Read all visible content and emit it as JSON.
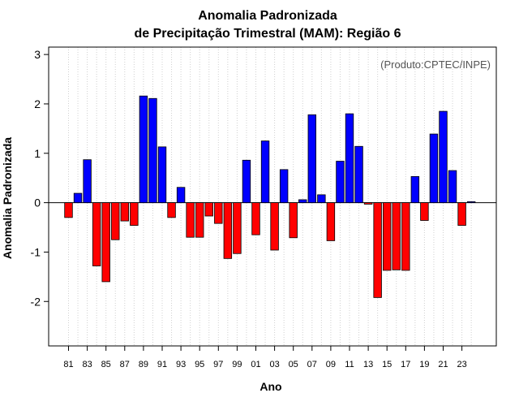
{
  "chart_data": {
    "type": "bar",
    "title_line1": "Anomalia Padronizada",
    "title_line2": "de Precipitação Trimestral (MAM): Região 6",
    "xlabel": "Ano",
    "ylabel": "Anomalia Padronizada",
    "credit": "(Produto:CPTEC/INPE)",
    "ylim": [
      -2.9,
      3.15
    ],
    "yticks": [
      -2,
      -1,
      0,
      1,
      2,
      3
    ],
    "ytick_labels": [
      "-2",
      "-1",
      "0",
      "1",
      "2",
      "3"
    ],
    "x_tick_labels": [
      "81",
      "83",
      "85",
      "87",
      "89",
      "91",
      "93",
      "95",
      "97",
      "99",
      "01",
      "03",
      "05",
      "07",
      "09",
      "11",
      "13",
      "15",
      "17",
      "19",
      "21",
      "23"
    ],
    "vertical_gridlines": true,
    "positive_color": "#0000ff",
    "negative_color": "#ff0000",
    "categories": [
      "1981",
      "1982",
      "1983",
      "1984",
      "1985",
      "1986",
      "1987",
      "1988",
      "1989",
      "1990",
      "1991",
      "1992",
      "1993",
      "1994",
      "1995",
      "1996",
      "1997",
      "1998",
      "1999",
      "2000",
      "2001",
      "2002",
      "2003",
      "2004",
      "2005",
      "2006",
      "2007",
      "2008",
      "2009",
      "2010",
      "2011",
      "2012",
      "2013",
      "2014",
      "2015",
      "2016",
      "2017",
      "2018",
      "2019",
      "2020",
      "2021",
      "2022",
      "2023",
      "2024"
    ],
    "values": [
      -0.3,
      0.19,
      0.87,
      -1.28,
      -1.6,
      -0.75,
      -0.37,
      -0.46,
      2.16,
      2.11,
      1.13,
      -0.3,
      0.31,
      -0.7,
      -0.7,
      -0.27,
      -0.42,
      -1.13,
      -1.03,
      0.86,
      -0.65,
      1.25,
      -0.96,
      0.67,
      -0.71,
      0.06,
      1.78,
      0.16,
      -0.77,
      0.84,
      1.8,
      1.14,
      -0.03,
      -1.92,
      -1.37,
      -1.36,
      -1.37,
      0.53,
      -0.36,
      1.39,
      1.85,
      0.65,
      -0.46,
      0.02
    ]
  }
}
